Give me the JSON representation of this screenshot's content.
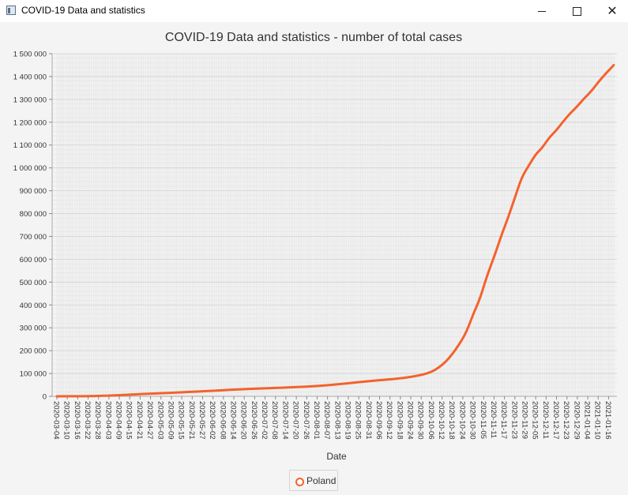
{
  "window": {
    "title": "COVID-19 Data and statistics",
    "icon": "app-window-icon",
    "controls": {
      "minimize": "minimize-icon",
      "maximize": "maximize-icon",
      "close": "close-icon"
    }
  },
  "colors": {
    "series": "#f3622d",
    "background": "#f4f4f4",
    "plot_background": "#f4f4f4",
    "grid": "#dcdcdc"
  },
  "chart_data": {
    "type": "line",
    "title": "COVID-19 Data and statistics - number of total cases",
    "xlabel": "Date",
    "ylabel": "",
    "ylim": [
      0,
      1500000
    ],
    "yticks": [
      0,
      100000,
      200000,
      300000,
      400000,
      500000,
      600000,
      700000,
      800000,
      900000,
      1000000,
      1100000,
      1200000,
      1300000,
      1400000,
      1500000
    ],
    "ytick_labels": [
      "0",
      "100 000",
      "200 000",
      "300 000",
      "400 000",
      "500 000",
      "600 000",
      "700 000",
      "800 000",
      "900 000",
      "1 000 000",
      "1 100 000",
      "1 200 000",
      "1 300 000",
      "1 400 000",
      "1 500 000"
    ],
    "x_start": "2020-03-04",
    "x_end": "2021-01-19",
    "xtick_labels": [
      "2020-03-04",
      "2020-03-10",
      "2020-03-16",
      "2020-03-22",
      "2020-03-28",
      "2020-04-03",
      "2020-04-09",
      "2020-04-15",
      "2020-04-21",
      "2020-04-27",
      "2020-05-03",
      "2020-05-09",
      "2020-05-15",
      "2020-05-21",
      "2020-05-27",
      "2020-06-02",
      "2020-06-08",
      "2020-06-14",
      "2020-06-20",
      "2020-06-26",
      "2020-07-02",
      "2020-07-08",
      "2020-07-14",
      "2020-07-20",
      "2020-07-26",
      "2020-08-01",
      "2020-08-07",
      "2020-08-13",
      "2020-08-19",
      "2020-08-25",
      "2020-08-31",
      "2020-09-06",
      "2020-09-12",
      "2020-09-18",
      "2020-09-24",
      "2020-09-30",
      "2020-10-06",
      "2020-10-12",
      "2020-10-18",
      "2020-10-24",
      "2020-10-30",
      "2020-11-05",
      "2020-11-11",
      "2020-11-17",
      "2020-11-23",
      "2020-11-29",
      "2020-12-05",
      "2020-12-11",
      "2020-12-17",
      "2020-12-23",
      "2020-12-29",
      "2021-01-04",
      "2021-01-10",
      "2021-01-16"
    ],
    "grid": true,
    "legend_position": "bottom-center",
    "series": [
      {
        "name": "Poland",
        "points": [
          [
            "2020-03-04",
            1
          ],
          [
            "2020-03-20",
            400
          ],
          [
            "2020-04-01",
            2500
          ],
          [
            "2020-04-15",
            7500
          ],
          [
            "2020-05-01",
            13000
          ],
          [
            "2020-05-15",
            17500
          ],
          [
            "2020-06-01",
            24000
          ],
          [
            "2020-06-15",
            30000
          ],
          [
            "2020-07-01",
            35000
          ],
          [
            "2020-07-15",
            38500
          ],
          [
            "2020-08-01",
            44500
          ],
          [
            "2020-08-15",
            54000
          ],
          [
            "2020-09-01",
            68000
          ],
          [
            "2020-09-15",
            76000
          ],
          [
            "2020-09-25",
            86000
          ],
          [
            "2020-10-01",
            95000
          ],
          [
            "2020-10-06",
            107000
          ],
          [
            "2020-10-10",
            125000
          ],
          [
            "2020-10-14",
            150000
          ],
          [
            "2020-10-18",
            185000
          ],
          [
            "2020-10-22",
            228000
          ],
          [
            "2020-10-26",
            280000
          ],
          [
            "2020-10-30",
            360000
          ],
          [
            "2020-11-03",
            430000
          ],
          [
            "2020-11-07",
            530000
          ],
          [
            "2020-11-11",
            610000
          ],
          [
            "2020-11-15",
            700000
          ],
          [
            "2020-11-19",
            780000
          ],
          [
            "2020-11-23",
            870000
          ],
          [
            "2020-11-27",
            960000
          ],
          [
            "2020-12-01",
            1010000
          ],
          [
            "2020-12-05",
            1060000
          ],
          [
            "2020-12-09",
            1090000
          ],
          [
            "2020-12-13",
            1135000
          ],
          [
            "2020-12-17",
            1165000
          ],
          [
            "2020-12-21",
            1205000
          ],
          [
            "2020-12-25",
            1240000
          ],
          [
            "2020-12-29",
            1270000
          ],
          [
            "2021-01-02",
            1305000
          ],
          [
            "2021-01-06",
            1335000
          ],
          [
            "2021-01-10",
            1375000
          ],
          [
            "2021-01-14",
            1410000
          ],
          [
            "2021-01-19",
            1450000
          ]
        ]
      }
    ]
  }
}
